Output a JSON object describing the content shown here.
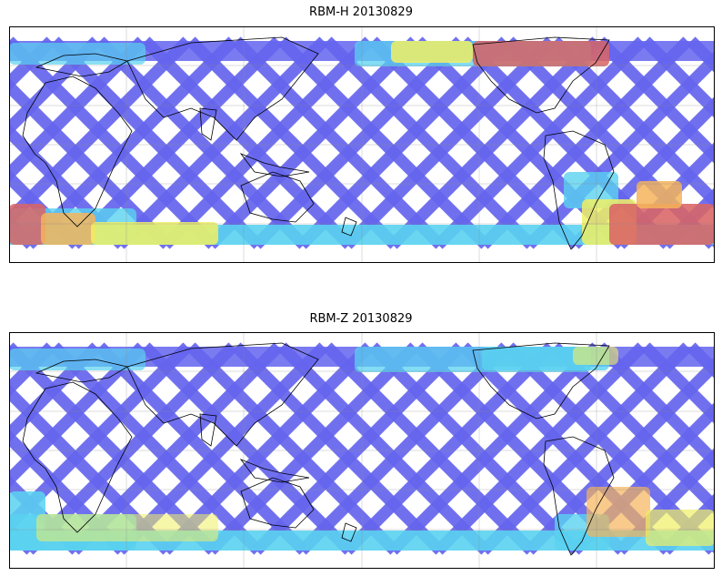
{
  "panels": [
    {
      "title": "RBM-H 20130829",
      "colors": {
        "low": "#6464ee",
        "cyan": "#5ad2f0",
        "yellow": "#f0f064",
        "orange": "#f5b45a",
        "high": "#d96464"
      }
    },
    {
      "title": "RBM-Z 20130829",
      "colors": {
        "low": "#6464ee",
        "cyan": "#5ad2f0",
        "yellow": "#f0f064",
        "orange": "#f5b45a",
        "high": "#d96464"
      }
    }
  ],
  "projection": "equirectangular",
  "coastlines": "black",
  "gridlines": true,
  "colormap": "jet"
}
